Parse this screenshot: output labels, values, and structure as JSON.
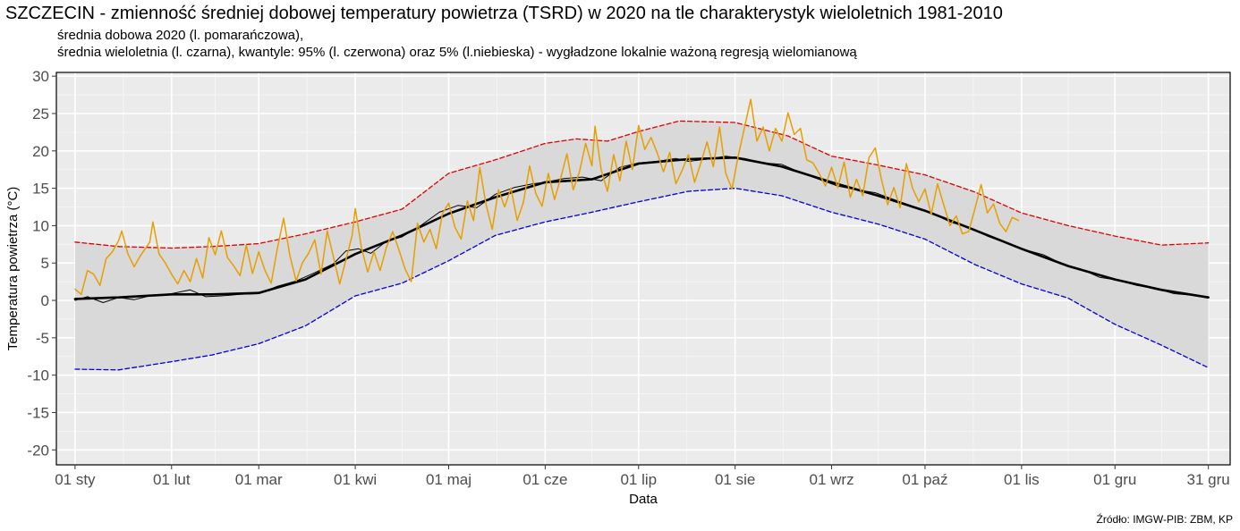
{
  "header": {
    "title": "SZCZECIN - zmienność średniej dobowej temperatury powietrza (TSRD) w 2020 na tle charakterystyk wieloletnich 1981-2010",
    "subtitle_line1": "średnia dobowa 2020 (l. pomarańczowa),",
    "subtitle_line2": "średnia wieloletnia (l. czarna), kwantyle: 95% (l. czerwona) oraz 5% (l.niebieska) - wygładzone lokalnie ważoną regresją wielomianową"
  },
  "footer": {
    "source": "Źródło: IMGW-PIB: ZBM, KP"
  },
  "chart_data": {
    "type": "line",
    "title": "SZCZECIN - zmienność średniej dobowej temperatury powietrza (TSRD) w 2020 na tle charakterystyk wieloletnich 1981-2010",
    "xlabel": "Data",
    "ylabel": "Temperatura powietrza (°C)",
    "ylim": [
      -22,
      30.5
    ],
    "yticks": [
      -20,
      -15,
      -10,
      -5,
      0,
      5,
      10,
      15,
      20,
      25,
      30
    ],
    "xlim_day": [
      -5,
      372
    ],
    "xticks": [
      {
        "label": "01 sty",
        "day": 1
      },
      {
        "label": "01 lut",
        "day": 32
      },
      {
        "label": "01 mar",
        "day": 60
      },
      {
        "label": "01 kwi",
        "day": 91
      },
      {
        "label": "01 maj",
        "day": 121
      },
      {
        "label": "01 cze",
        "day": 152
      },
      {
        "label": "01 lip",
        "day": 182
      },
      {
        "label": "01 sie",
        "day": 213
      },
      {
        "label": "01 wrz",
        "day": 244
      },
      {
        "label": "01 paź",
        "day": 274
      },
      {
        "label": "01 lis",
        "day": 305
      },
      {
        "label": "01 gru",
        "day": 335
      },
      {
        "label": "31 gru",
        "day": 365
      }
    ],
    "grid": true,
    "series": [
      {
        "role": "q95",
        "color": "#dd0000",
        "style": "dashed",
        "points": [
          [
            1,
            7.8
          ],
          [
            15,
            7.2
          ],
          [
            32,
            7.0
          ],
          [
            45,
            7.2
          ],
          [
            60,
            7.6
          ],
          [
            75,
            8.9
          ],
          [
            91,
            10.5
          ],
          [
            106,
            12.2
          ],
          [
            121,
            17.0
          ],
          [
            136,
            18.8
          ],
          [
            152,
            21.0
          ],
          [
            162,
            21.6
          ],
          [
            172,
            21.3
          ],
          [
            182,
            22.6
          ],
          [
            195,
            24.0
          ],
          [
            213,
            23.8
          ],
          [
            230,
            22.0
          ],
          [
            244,
            19.3
          ],
          [
            259,
            18.1
          ],
          [
            274,
            16.8
          ],
          [
            290,
            14.5
          ],
          [
            305,
            11.7
          ],
          [
            320,
            10.0
          ],
          [
            335,
            8.6
          ],
          [
            350,
            7.4
          ],
          [
            365,
            7.7
          ]
        ]
      },
      {
        "role": "q05",
        "color": "#0000cc",
        "style": "dashed",
        "points": [
          [
            1,
            -9.2
          ],
          [
            15,
            -9.3
          ],
          [
            32,
            -8.2
          ],
          [
            45,
            -7.3
          ],
          [
            60,
            -5.8
          ],
          [
            75,
            -3.4
          ],
          [
            91,
            0.6
          ],
          [
            106,
            2.3
          ],
          [
            121,
            5.3
          ],
          [
            136,
            8.7
          ],
          [
            152,
            10.5
          ],
          [
            167,
            11.8
          ],
          [
            182,
            13.2
          ],
          [
            198,
            14.6
          ],
          [
            213,
            15.0
          ],
          [
            228,
            14.0
          ],
          [
            244,
            11.8
          ],
          [
            259,
            10.2
          ],
          [
            274,
            8.2
          ],
          [
            290,
            4.8
          ],
          [
            305,
            2.2
          ],
          [
            320,
            0.3
          ],
          [
            335,
            -3.2
          ],
          [
            350,
            -6.0
          ],
          [
            365,
            -9.0
          ]
        ]
      },
      {
        "role": "mean_smooth",
        "color": "#000000",
        "style": "solid",
        "width": 2.6,
        "points": [
          [
            1,
            0.2
          ],
          [
            15,
            0.4
          ],
          [
            32,
            0.8
          ],
          [
            45,
            0.8
          ],
          [
            60,
            1.0
          ],
          [
            75,
            2.8
          ],
          [
            91,
            6.2
          ],
          [
            106,
            8.7
          ],
          [
            121,
            11.6
          ],
          [
            136,
            13.8
          ],
          [
            152,
            15.8
          ],
          [
            167,
            16.2
          ],
          [
            182,
            18.3
          ],
          [
            198,
            18.9
          ],
          [
            213,
            19.1
          ],
          [
            228,
            17.9
          ],
          [
            244,
            15.8
          ],
          [
            259,
            14.0
          ],
          [
            274,
            12.0
          ],
          [
            290,
            9.4
          ],
          [
            305,
            6.9
          ],
          [
            320,
            4.6
          ],
          [
            335,
            2.8
          ],
          [
            350,
            1.4
          ],
          [
            365,
            0.4
          ]
        ]
      },
      {
        "role": "mean_daily",
        "color": "#000000",
        "style": "solid",
        "width": 1.0,
        "points": [
          [
            1,
            0.0
          ],
          [
            5,
            0.5
          ],
          [
            10,
            -0.3
          ],
          [
            15,
            0.4
          ],
          [
            20,
            0.1
          ],
          [
            25,
            0.6
          ],
          [
            32,
            0.9
          ],
          [
            38,
            1.4
          ],
          [
            43,
            0.5
          ],
          [
            48,
            0.6
          ],
          [
            54,
            0.8
          ],
          [
            60,
            0.9
          ],
          [
            66,
            1.9
          ],
          [
            72,
            2.6
          ],
          [
            78,
            3.7
          ],
          [
            84,
            4.9
          ],
          [
            88,
            6.6
          ],
          [
            92,
            6.9
          ],
          [
            96,
            6.3
          ],
          [
            101,
            7.9
          ],
          [
            106,
            8.5
          ],
          [
            112,
            10.0
          ],
          [
            118,
            11.8
          ],
          [
            124,
            12.7
          ],
          [
            130,
            12.4
          ],
          [
            136,
            14.2
          ],
          [
            142,
            15.1
          ],
          [
            148,
            15.6
          ],
          [
            152,
            15.8
          ],
          [
            158,
            16.3
          ],
          [
            164,
            16.5
          ],
          [
            170,
            16.0
          ],
          [
            176,
            17.8
          ],
          [
            182,
            18.4
          ],
          [
            188,
            18.6
          ],
          [
            194,
            19.0
          ],
          [
            198,
            18.6
          ],
          [
            204,
            18.9
          ],
          [
            210,
            19.3
          ],
          [
            216,
            19.0
          ],
          [
            222,
            18.4
          ],
          [
            228,
            18.2
          ],
          [
            234,
            17.1
          ],
          [
            240,
            16.2
          ],
          [
            246,
            15.3
          ],
          [
            252,
            14.8
          ],
          [
            258,
            14.4
          ],
          [
            264,
            13.5
          ],
          [
            270,
            12.6
          ],
          [
            276,
            11.7
          ],
          [
            282,
            10.5
          ],
          [
            288,
            9.7
          ],
          [
            294,
            8.6
          ],
          [
            300,
            7.7
          ],
          [
            306,
            6.8
          ],
          [
            312,
            6.1
          ],
          [
            318,
            4.9
          ],
          [
            324,
            4.2
          ],
          [
            330,
            3.1
          ],
          [
            336,
            2.7
          ],
          [
            342,
            2.0
          ],
          [
            348,
            1.6
          ],
          [
            354,
            0.9
          ],
          [
            360,
            0.7
          ],
          [
            365,
            0.3
          ]
        ]
      },
      {
        "role": "daily_2020",
        "color": "#e69f00",
        "style": "solid",
        "width": 1.5,
        "points": [
          [
            1,
            1.5
          ],
          [
            3,
            0.8
          ],
          [
            5,
            4.0
          ],
          [
            7,
            3.5
          ],
          [
            9,
            2.0
          ],
          [
            11,
            5.6
          ],
          [
            13,
            6.5
          ],
          [
            15,
            8.0
          ],
          [
            16,
            9.3
          ],
          [
            18,
            6.2
          ],
          [
            20,
            4.5
          ],
          [
            22,
            6.0
          ],
          [
            25,
            7.8
          ],
          [
            26,
            10.5
          ],
          [
            28,
            6.2
          ],
          [
            30,
            5.0
          ],
          [
            32,
            3.5
          ],
          [
            34,
            2.2
          ],
          [
            36,
            4.0
          ],
          [
            38,
            2.5
          ],
          [
            40,
            5.6
          ],
          [
            42,
            3.0
          ],
          [
            44,
            8.4
          ],
          [
            46,
            6.1
          ],
          [
            48,
            9.3
          ],
          [
            50,
            5.7
          ],
          [
            52,
            4.6
          ],
          [
            54,
            3.3
          ],
          [
            56,
            7.4
          ],
          [
            58,
            3.6
          ],
          [
            60,
            6.5
          ],
          [
            62,
            4.0
          ],
          [
            64,
            2.3
          ],
          [
            66,
            7.0
          ],
          [
            68,
            11.0
          ],
          [
            70,
            6.0
          ],
          [
            72,
            2.6
          ],
          [
            74,
            5.0
          ],
          [
            76,
            6.3
          ],
          [
            78,
            8.1
          ],
          [
            80,
            3.5
          ],
          [
            82,
            9.3
          ],
          [
            84,
            5.8
          ],
          [
            86,
            2.2
          ],
          [
            88,
            5.4
          ],
          [
            90,
            8.7
          ],
          [
            91,
            12.3
          ],
          [
            93,
            7.0
          ],
          [
            95,
            3.8
          ],
          [
            97,
            6.5
          ],
          [
            99,
            4.0
          ],
          [
            101,
            7.1
          ],
          [
            103,
            9.2
          ],
          [
            105,
            6.8
          ],
          [
            107,
            4.2
          ],
          [
            109,
            2.5
          ],
          [
            111,
            10.3
          ],
          [
            113,
            7.8
          ],
          [
            115,
            9.5
          ],
          [
            117,
            6.9
          ],
          [
            119,
            11.6
          ],
          [
            121,
            13.0
          ],
          [
            123,
            9.8
          ],
          [
            125,
            8.2
          ],
          [
            127,
            13.3
          ],
          [
            129,
            10.7
          ],
          [
            131,
            17.8
          ],
          [
            133,
            12.8
          ],
          [
            135,
            9.5
          ],
          [
            137,
            14.8
          ],
          [
            139,
            12.5
          ],
          [
            141,
            15.0
          ],
          [
            143,
            10.7
          ],
          [
            145,
            13.1
          ],
          [
            147,
            18.0
          ],
          [
            149,
            14.3
          ],
          [
            151,
            12.6
          ],
          [
            153,
            17.0
          ],
          [
            155,
            13.5
          ],
          [
            157,
            16.4
          ],
          [
            159,
            19.6
          ],
          [
            161,
            14.8
          ],
          [
            163,
            17.2
          ],
          [
            165,
            21.0
          ],
          [
            167,
            18.0
          ],
          [
            168,
            23.3
          ],
          [
            170,
            17.4
          ],
          [
            172,
            14.6
          ],
          [
            174,
            19.5
          ],
          [
            176,
            16.0
          ],
          [
            178,
            21.3
          ],
          [
            180,
            17.5
          ],
          [
            182,
            23.4
          ],
          [
            184,
            20.2
          ],
          [
            186,
            21.8
          ],
          [
            188,
            19.7
          ],
          [
            190,
            17.2
          ],
          [
            192,
            19.8
          ],
          [
            194,
            15.6
          ],
          [
            196,
            17.4
          ],
          [
            198,
            19.5
          ],
          [
            200,
            15.8
          ],
          [
            202,
            18.4
          ],
          [
            204,
            21.2
          ],
          [
            206,
            17.9
          ],
          [
            208,
            23.2
          ],
          [
            210,
            17.0
          ],
          [
            212,
            14.9
          ],
          [
            214,
            19.3
          ],
          [
            216,
            23.1
          ],
          [
            218,
            26.9
          ],
          [
            220,
            21.3
          ],
          [
            222,
            23.2
          ],
          [
            224,
            20.0
          ],
          [
            226,
            23.0
          ],
          [
            228,
            21.3
          ],
          [
            230,
            25.1
          ],
          [
            232,
            22.2
          ],
          [
            234,
            23.0
          ],
          [
            236,
            18.8
          ],
          [
            238,
            18.4
          ],
          [
            240,
            17.0
          ],
          [
            242,
            15.3
          ],
          [
            244,
            17.8
          ],
          [
            246,
            15.1
          ],
          [
            248,
            18.5
          ],
          [
            250,
            13.8
          ],
          [
            252,
            16.2
          ],
          [
            254,
            14.0
          ],
          [
            256,
            19.1
          ],
          [
            258,
            20.4
          ],
          [
            260,
            16.2
          ],
          [
            262,
            12.8
          ],
          [
            264,
            15.1
          ],
          [
            266,
            12.4
          ],
          [
            268,
            18.3
          ],
          [
            270,
            15.0
          ],
          [
            272,
            13.2
          ],
          [
            274,
            14.9
          ],
          [
            276,
            11.5
          ],
          [
            278,
            15.6
          ],
          [
            280,
            12.8
          ],
          [
            282,
            10.0
          ],
          [
            284,
            11.3
          ],
          [
            286,
            8.9
          ],
          [
            288,
            9.2
          ],
          [
            290,
            12.2
          ],
          [
            292,
            15.5
          ],
          [
            294,
            11.7
          ],
          [
            296,
            12.9
          ],
          [
            298,
            10.3
          ],
          [
            300,
            9.2
          ],
          [
            302,
            11.1
          ],
          [
            304,
            10.7
          ]
        ]
      }
    ]
  }
}
